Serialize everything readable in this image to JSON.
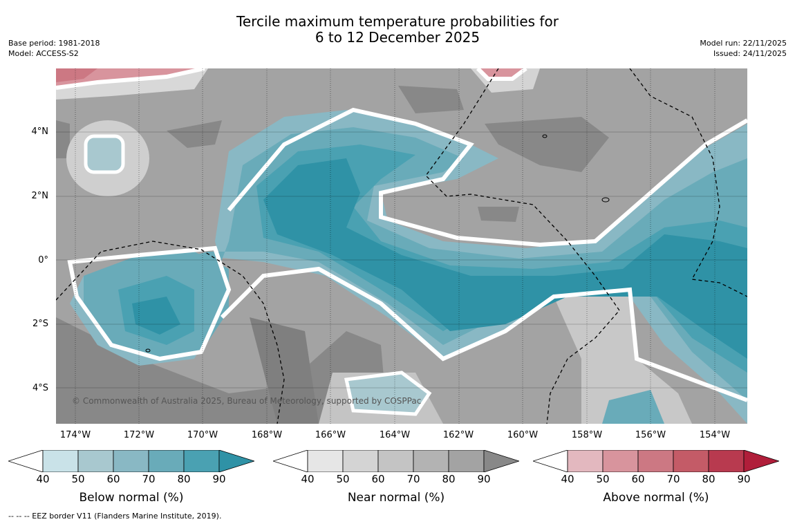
{
  "title_line1": "Tercile maximum temperature probabilities for",
  "title_line2": "6 to 12 December 2025",
  "base_period": "Base period: 1981-2018",
  "model": "Model: ACCESS-S2",
  "model_run": "Model run: 22/11/2025",
  "issued": "Issued: 24/11/2025",
  "copyright": "© Commonwealth of Australia 2025, Bureau of Meteorology, supported by COSPPac",
  "footnote": "--  --  -- EEZ border V11 (Flanders Marine Institute, 2019).",
  "lat_labels": [
    "4°N",
    "2°N",
    "0°",
    "2°S",
    "4°S"
  ],
  "lon_labels": [
    "174°W",
    "172°W",
    "170°W",
    "168°W",
    "166°W",
    "164°W",
    "162°W",
    "160°W",
    "158°W",
    "156°W",
    "154°W"
  ],
  "colorbars": {
    "below": {
      "title": "Below normal (%)",
      "ticks": [
        "40",
        "50",
        "60",
        "70",
        "80",
        "90"
      ],
      "colors": [
        "#ffffff",
        "#c9e2e8",
        "#a8c8cf",
        "#89b8c4",
        "#69abb9",
        "#4aa1b2",
        "#2f92a6"
      ]
    },
    "near": {
      "title": "Near normal (%)",
      "ticks": [
        "40",
        "50",
        "60",
        "70",
        "80",
        "90"
      ],
      "colors": [
        "#ffffff",
        "#e6e6e6",
        "#d4d4d4",
        "#c4c4c4",
        "#b3b3b3",
        "#a3a3a3",
        "#888888"
      ]
    },
    "above": {
      "title": "Above normal (%)",
      "ticks": [
        "40",
        "50",
        "60",
        "70",
        "80",
        "90"
      ],
      "colors": [
        "#ffffff",
        "#e3b8bf",
        "#d8949d",
        "#cc7883",
        "#c45b67",
        "#b83a4f",
        "#b01e3a"
      ]
    }
  }
}
